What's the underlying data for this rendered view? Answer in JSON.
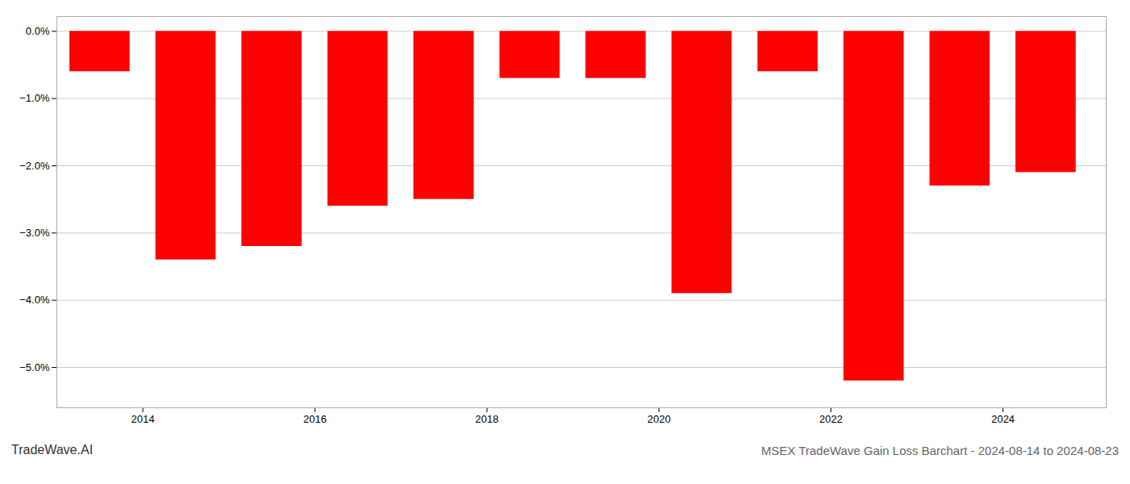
{
  "chart_data": {
    "type": "bar",
    "title": "MSEX TradeWave Gain Loss Barchart - 2024-08-14 to 2024-08-23",
    "annotation": "TradeWave.AI",
    "x": [
      2013.5,
      2014.5,
      2015.5,
      2016.5,
      2017.5,
      2018.5,
      2019.5,
      2020.5,
      2021.5,
      2022.5,
      2023.5,
      2024.5
    ],
    "values": [
      -0.6,
      -3.4,
      -3.2,
      -2.6,
      -2.5,
      -0.7,
      -0.7,
      -3.9,
      -0.6,
      -5.2,
      -2.3,
      -2.1
    ],
    "color": "#ff0000",
    "xlim": [
      2013.0,
      2025.2
    ],
    "xticks": [
      2014,
      2016,
      2018,
      2020,
      2022,
      2024
    ],
    "ylim": [
      -5.6,
      0.22
    ],
    "yticks": [
      {
        "value": 0.0,
        "label": "0.0%"
      },
      {
        "value": -1.0,
        "label": "−1.0%"
      },
      {
        "value": -2.0,
        "label": "−2.0%"
      },
      {
        "value": -3.0,
        "label": "−3.0%"
      },
      {
        "value": -4.0,
        "label": "−4.0%"
      },
      {
        "value": -5.0,
        "label": "−5.0%"
      }
    ],
    "grid": true
  }
}
